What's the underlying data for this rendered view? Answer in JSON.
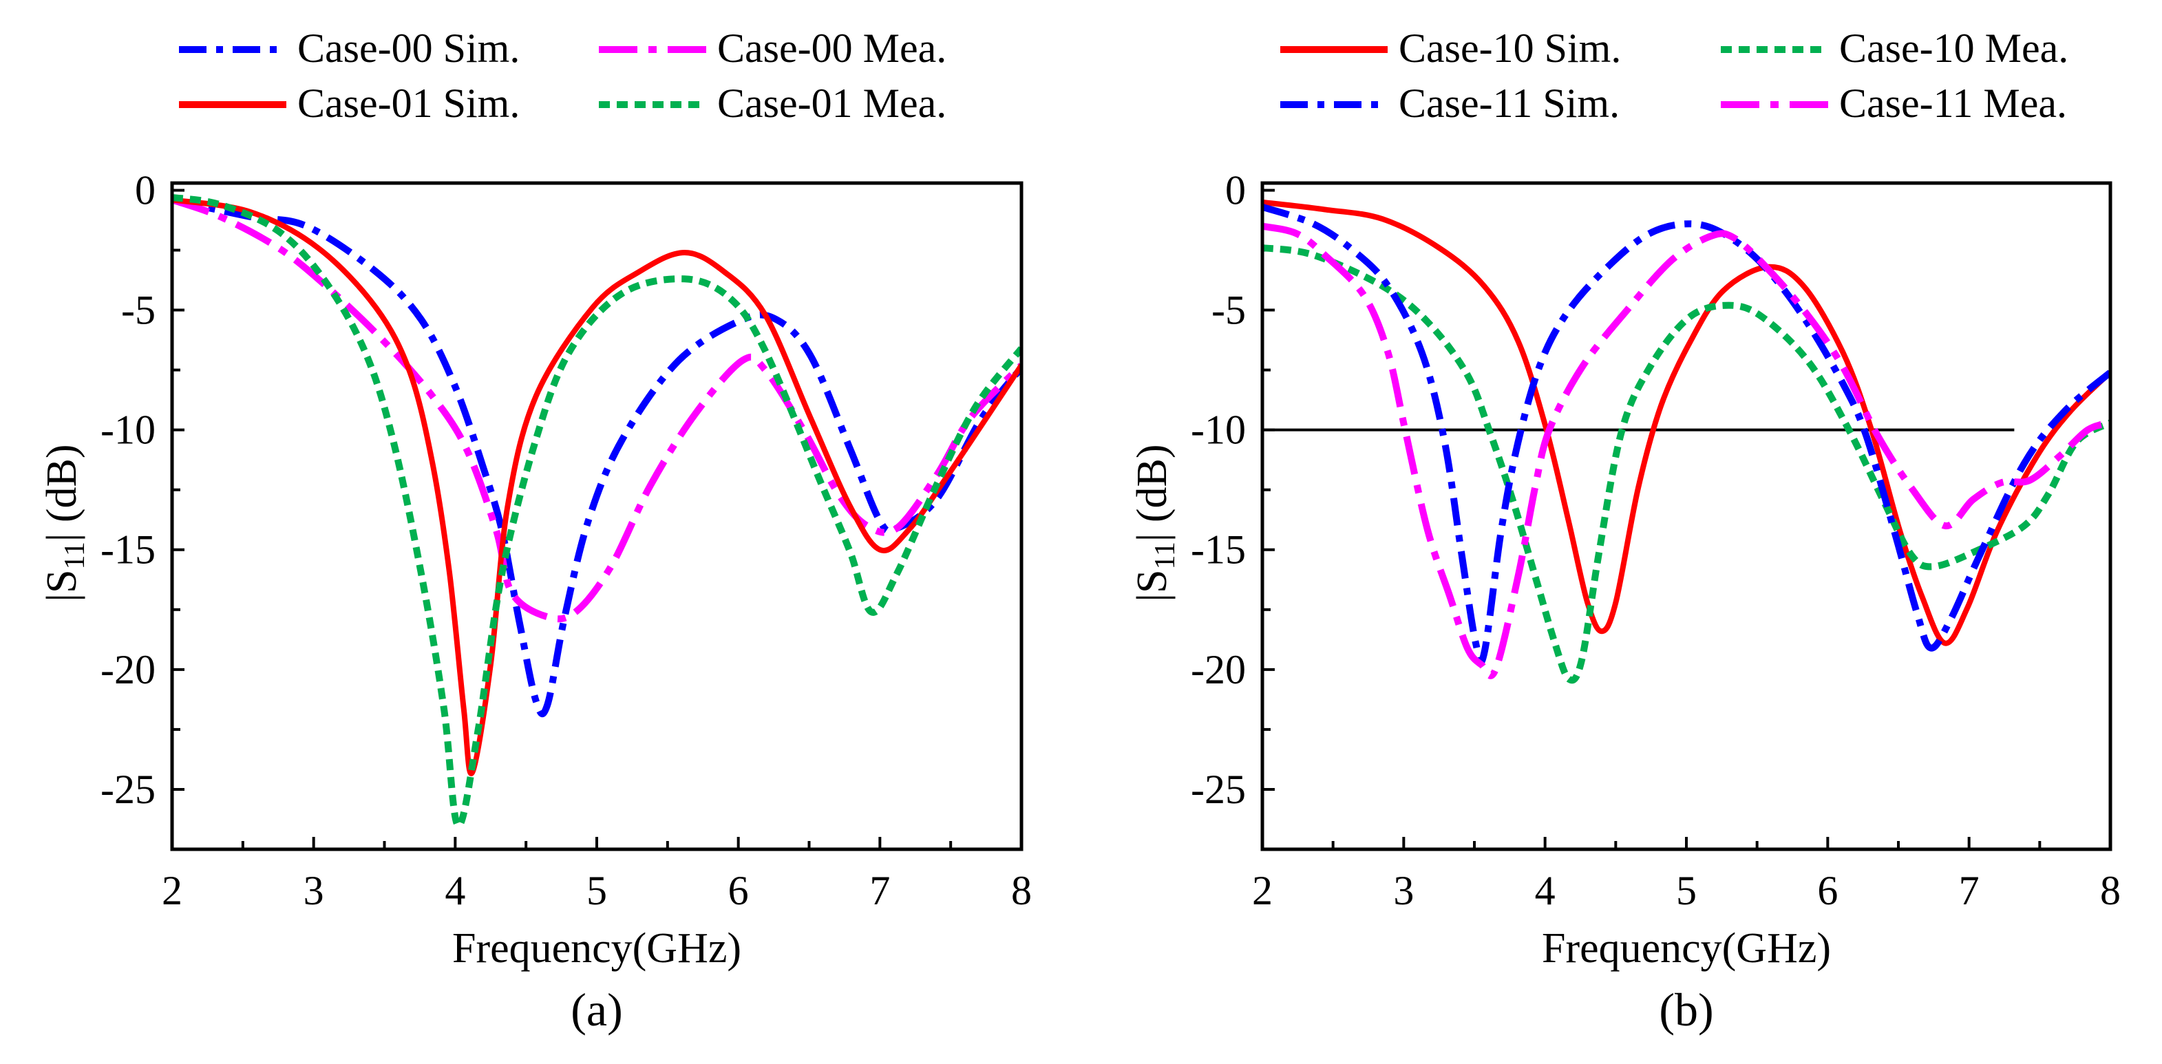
{
  "chart_data": [
    {
      "type": "line",
      "panel_label": "(a)",
      "xlabel": "Frequency(GHz)",
      "ylabel_main": "|S",
      "ylabel_sub": "11",
      "ylabel_tail": "| (dB)",
      "xlim": [
        2,
        8
      ],
      "ylim": [
        -27.5,
        0.3
      ],
      "xticks": [
        2,
        3,
        4,
        5,
        6,
        7,
        8
      ],
      "xtick_labels": [
        "2",
        "3",
        "4",
        "5",
        "6",
        "7",
        "8"
      ],
      "yticks": [
        0,
        -5,
        -10,
        -15,
        -20,
        -25
      ],
      "ytick_labels": [
        "0",
        "-5",
        "-10",
        "-15",
        "-20",
        "-25"
      ],
      "grid": false,
      "legend_position": "top",
      "reference_line": null,
      "series": [
        {
          "name": "Case-00 Sim.",
          "color": "#0000ff",
          "style": "dashdot",
          "x": [
            2,
            2.55,
            2.95,
            3.44,
            3.76,
            4.0,
            4.2,
            4.33,
            4.45,
            4.57,
            4.65,
            4.77,
            4.94,
            5.18,
            5.58,
            6.03,
            6.27,
            6.51,
            6.79,
            7.0,
            7.12,
            7.4,
            7.72,
            8
          ],
          "y": [
            -0.4,
            -1.1,
            -1.5,
            -3.4,
            -5.4,
            -8.2,
            -11.6,
            -14.2,
            -17.9,
            -21.3,
            -21.5,
            -17.9,
            -13.8,
            -10.4,
            -7.1,
            -5.4,
            -5.4,
            -6.9,
            -10.8,
            -13.8,
            -14.1,
            -12.9,
            -9.5,
            -7.4
          ]
        },
        {
          "name": "Case-00 Mea.",
          "color": "#ff00ff",
          "style": "longdashdot",
          "x": [
            2,
            2.34,
            2.75,
            3.07,
            3.48,
            3.84,
            4.08,
            4.29,
            4.4,
            4.65,
            4.85,
            5.1,
            5.38,
            5.7,
            6.03,
            6.19,
            6.47,
            6.71,
            6.91,
            7.12,
            7.4,
            7.64,
            8
          ],
          "y": [
            -0.4,
            -1.1,
            -2.4,
            -3.9,
            -6.2,
            -8.6,
            -10.8,
            -14.2,
            -16.8,
            -17.8,
            -17.6,
            -15.7,
            -12.3,
            -9.3,
            -7.1,
            -7.5,
            -10.1,
            -12.7,
            -14.0,
            -14.1,
            -11.9,
            -9.5,
            -7.3
          ]
        },
        {
          "name": "Case-01 Sim.",
          "color": "#ff0000",
          "style": "solid",
          "x": [
            2,
            2.55,
            3.03,
            3.44,
            3.68,
            3.84,
            3.96,
            4.06,
            4.12,
            4.25,
            4.37,
            4.57,
            4.97,
            5.3,
            5.62,
            5.9,
            6.19,
            6.51,
            6.79,
            7.0,
            7.2,
            7.48,
            8
          ],
          "y": [
            -0.4,
            -0.9,
            -2.4,
            -4.9,
            -7.6,
            -11.4,
            -16.0,
            -21.6,
            -24.3,
            -19.8,
            -13.2,
            -8.6,
            -4.9,
            -3.4,
            -2.6,
            -3.4,
            -5.2,
            -9.5,
            -13.2,
            -15.0,
            -14.2,
            -11.9,
            -7.3
          ]
        },
        {
          "name": "Case-01 Mea.",
          "color": "#00b050",
          "style": "shortdash",
          "x": [
            2,
            2.34,
            2.75,
            3.07,
            3.36,
            3.56,
            3.76,
            3.92,
            4.02,
            4.16,
            4.33,
            4.57,
            4.81,
            5.18,
            5.62,
            5.94,
            6.19,
            6.59,
            6.79,
            6.94,
            7.12,
            7.4,
            7.68,
            8
          ],
          "y": [
            -0.3,
            -0.6,
            -1.7,
            -3.7,
            -6.7,
            -10.4,
            -16.0,
            -21.6,
            -26.5,
            -22.6,
            -16.0,
            -10.4,
            -6.7,
            -4.3,
            -3.7,
            -4.5,
            -6.7,
            -12.3,
            -15.1,
            -17.6,
            -16.0,
            -12.3,
            -9.0,
            -6.6
          ]
        }
      ]
    },
    {
      "type": "line",
      "panel_label": "(b)",
      "xlabel": "Frequency(GHz)",
      "ylabel_main": "|S",
      "ylabel_sub": "11",
      "ylabel_tail": "| (dB)",
      "xlim": [
        2,
        8
      ],
      "ylim": [
        -27.5,
        0.3
      ],
      "xticks": [
        2,
        3,
        4,
        5,
        6,
        7,
        8
      ],
      "xtick_labels": [
        "2",
        "3",
        "4",
        "5",
        "6",
        "7",
        "8"
      ],
      "yticks": [
        0,
        -5,
        -10,
        -15,
        -20,
        -25
      ],
      "ytick_labels": [
        "0",
        "-5",
        "-10",
        "-15",
        "-20",
        "-25"
      ],
      "grid": false,
      "legend_position": "top",
      "reference_line": {
        "y": -10,
        "x": [
          2,
          7.32
        ]
      },
      "series": [
        {
          "name": "Case-10 Sim.",
          "color": "#ff0000",
          "style": "solid",
          "x": [
            2,
            2.44,
            2.85,
            3.25,
            3.57,
            3.81,
            4.01,
            4.17,
            4.3,
            4.4,
            4.5,
            4.66,
            4.82,
            5.02,
            5.26,
            5.58,
            5.83,
            6.11,
            6.31,
            6.51,
            6.67,
            6.83,
            6.99,
            7.2,
            7.48,
            7.72,
            8
          ],
          "y": [
            -0.5,
            -0.8,
            -1.2,
            -2.4,
            -4.0,
            -6.3,
            -10.0,
            -13.9,
            -17.2,
            -18.4,
            -17.2,
            -12.4,
            -9.0,
            -6.4,
            -4.2,
            -3.2,
            -4.0,
            -6.8,
            -10.0,
            -14.2,
            -17.0,
            -18.9,
            -17.4,
            -14.2,
            -11.1,
            -9.2,
            -7.6
          ]
        },
        {
          "name": "Case-10 Mea.",
          "color": "#00b050",
          "style": "shortdash",
          "x": [
            2,
            2.36,
            2.85,
            3.17,
            3.45,
            3.61,
            3.77,
            3.93,
            4.07,
            4.17,
            4.26,
            4.38,
            4.54,
            4.74,
            5.02,
            5.3,
            5.54,
            5.87,
            6.15,
            6.39,
            6.59,
            6.75,
            7.07,
            7.39,
            7.56,
            7.76,
            8
          ],
          "y": [
            -2.4,
            -2.7,
            -4.0,
            -5.5,
            -7.7,
            -10.1,
            -12.9,
            -16.1,
            -18.9,
            -20.4,
            -19.6,
            -15.2,
            -10.1,
            -7.4,
            -5.3,
            -4.8,
            -5.3,
            -7.2,
            -10.0,
            -12.9,
            -15.2,
            -15.7,
            -15.0,
            -14.0,
            -12.7,
            -10.5,
            -9.7
          ]
        },
        {
          "name": "Case-11 Sim.",
          "color": "#0000ff",
          "style": "dashdot",
          "x": [
            2,
            2.36,
            2.64,
            2.89,
            3.13,
            3.29,
            3.41,
            3.51,
            3.57,
            3.69,
            3.81,
            3.97,
            4.17,
            4.46,
            4.74,
            5.02,
            5.26,
            5.54,
            5.83,
            6.11,
            6.27,
            6.47,
            6.63,
            6.73,
            6.87,
            7.07,
            7.39,
            7.68,
            8
          ],
          "y": [
            -0.7,
            -1.4,
            -2.5,
            -4.0,
            -6.8,
            -10.5,
            -15.2,
            -18.9,
            -19.3,
            -14.2,
            -10.5,
            -7.2,
            -5.0,
            -3.1,
            -1.8,
            -1.4,
            -1.8,
            -3.1,
            -5.3,
            -8.1,
            -10.2,
            -14.2,
            -17.6,
            -19.1,
            -17.9,
            -15.3,
            -11.4,
            -9.2,
            -7.6
          ]
        },
        {
          "name": "Case-11 Mea.",
          "color": "#ff00ff",
          "style": "longdashdot",
          "x": [
            2,
            2.24,
            2.44,
            2.72,
            2.89,
            3.01,
            3.17,
            3.33,
            3.45,
            3.55,
            3.65,
            3.81,
            3.93,
            4.03,
            4.26,
            4.58,
            4.9,
            5.18,
            5.34,
            5.58,
            5.87,
            6.11,
            6.35,
            6.59,
            6.83,
            7.03,
            7.23,
            7.43,
            7.64,
            7.84,
            8
          ],
          "y": [
            -1.5,
            -1.8,
            -2.7,
            -4.4,
            -6.8,
            -10.0,
            -14.2,
            -17.0,
            -19.1,
            -19.8,
            -20.0,
            -16.1,
            -12.4,
            -10.0,
            -7.4,
            -5.0,
            -2.9,
            -1.9,
            -2.0,
            -3.3,
            -5.3,
            -7.4,
            -10.2,
            -12.4,
            -14.0,
            -12.9,
            -12.2,
            -12.1,
            -11.1,
            -10.0,
            -9.7
          ]
        }
      ]
    }
  ]
}
